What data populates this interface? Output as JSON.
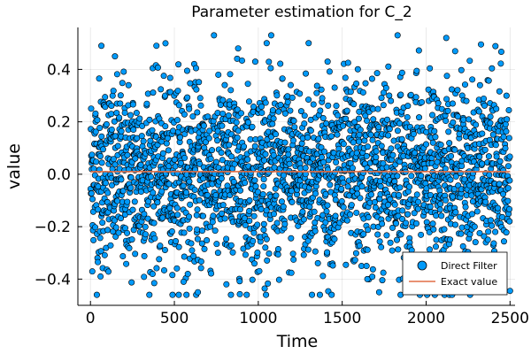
{
  "chart_data": {
    "type": "scatter",
    "title": "Parameter estimation for C_2",
    "xlabel": "Time",
    "ylabel": "value",
    "xlim": [
      -75,
      2530
    ],
    "ylim": [
      -0.5,
      0.56
    ],
    "grid": true,
    "legend_position": "bottom-right",
    "x_ticks": [
      0,
      500,
      1000,
      1500,
      2000,
      2500
    ],
    "x_tick_labels": [
      "0",
      "500",
      "1000",
      "1500",
      "2000",
      "2500"
    ],
    "y_ticks": [
      -0.4,
      -0.2,
      0.0,
      0.2,
      0.4
    ],
    "y_tick_labels": [
      "−0.4",
      "−0.2",
      "0.0",
      "0.2",
      "0.4"
    ],
    "series": [
      {
        "name": "Direct Filter",
        "kind": "scatter",
        "color": "#009AFA",
        "n_points": 2500,
        "x_range": [
          1,
          2500
        ],
        "y_mean": 0.0,
        "y_std": 0.18,
        "y_clip": [
          -0.46,
          0.53
        ],
        "notable_points": [
          {
            "x": 65,
            "y": 0.49
          },
          {
            "x": 1050,
            "y": 0.5
          },
          {
            "x": 1830,
            "y": 0.53
          },
          {
            "x": 2120,
            "y": 0.52
          },
          {
            "x": 880,
            "y": 0.48
          },
          {
            "x": 1300,
            "y": 0.5
          },
          {
            "x": 1720,
            "y": -0.45
          },
          {
            "x": 640,
            "y": -0.45
          },
          {
            "x": 555,
            "y": -0.41
          },
          {
            "x": 810,
            "y": -0.42
          },
          {
            "x": 60,
            "y": -0.39
          },
          {
            "x": 2320,
            "y": -0.39
          },
          {
            "x": 1650,
            "y": -0.4
          },
          {
            "x": 2050,
            "y": -0.38
          }
        ]
      },
      {
        "name": "Exact value",
        "kind": "line",
        "color": "#E26F46",
        "x": [
          1,
          2500
        ],
        "y": [
          0.01,
          0.01
        ]
      }
    ]
  }
}
